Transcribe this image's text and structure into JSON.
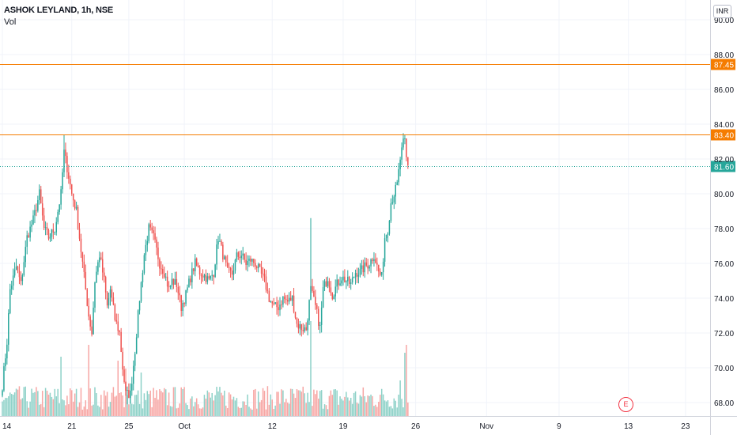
{
  "legend": {
    "title": "ASHOK LEYLAND, 1h, NSE",
    "volume_label": "Vol"
  },
  "currency_label": "INR",
  "earnings_marker": "E",
  "colors": {
    "up": "#26a69a",
    "down": "#ef5350",
    "vol_up": "#8ed1c8",
    "vol_down": "#f7a6a4",
    "resistance": "#f57c00",
    "last_price": "#26a69a",
    "grid": "#f0f3fa",
    "axis_text": "#131722"
  },
  "chart_data": {
    "type": "candlestick",
    "symbol": "ASHOK LEYLAND",
    "interval": "1h",
    "exchange": "NSE",
    "currency": "INR",
    "y_ticks": [
      68,
      70,
      72,
      74,
      76,
      78,
      80,
      82,
      84,
      86,
      88,
      90
    ],
    "ylim": [
      67.75,
      90.7
    ],
    "x_ticks": [
      {
        "label": "14",
        "bar": 0
      },
      {
        "label": "21",
        "bar": 45
      },
      {
        "label": "25",
        "bar": 82
      },
      {
        "label": "Oct",
        "bar": 118
      },
      {
        "label": "12",
        "bar": 175
      },
      {
        "label": "19",
        "bar": 221
      },
      {
        "label": "26",
        "bar": 268
      },
      {
        "label": "Nov",
        "bar": 314
      },
      {
        "label": "9",
        "bar": 361
      },
      {
        "label": "13",
        "bar": 406
      },
      {
        "label": "23",
        "bar": 443
      }
    ],
    "horizontal_lines": [
      {
        "price": 87.45,
        "label": "87.45",
        "style": "solid"
      },
      {
        "price": 83.4,
        "label": "83.40",
        "style": "solid"
      }
    ],
    "last_price": {
      "price": 81.6,
      "label": "81.60",
      "style": "dotted"
    },
    "anchors": [
      [
        0,
        69.0
      ],
      [
        3,
        71.5
      ],
      [
        5,
        74.5
      ],
      [
        9,
        75.8
      ],
      [
        12,
        74.8
      ],
      [
        16,
        77.5
      ],
      [
        20,
        78.5
      ],
      [
        24,
        80.0
      ],
      [
        27,
        78.0
      ],
      [
        30,
        77.5
      ],
      [
        34,
        78.0
      ],
      [
        38,
        80.0
      ],
      [
        40,
        82.4
      ],
      [
        42,
        81.5
      ],
      [
        45,
        80.0
      ],
      [
        48,
        79.0
      ],
      [
        52,
        76.0
      ],
      [
        56,
        73.0
      ],
      [
        58,
        72.0
      ],
      [
        60,
        75.0
      ],
      [
        63,
        76.5
      ],
      [
        66,
        75.0
      ],
      [
        68,
        73.5
      ],
      [
        70,
        74.5
      ],
      [
        73,
        72.8
      ],
      [
        76,
        72.0
      ],
      [
        78,
        70.0
      ],
      [
        80,
        68.5
      ],
      [
        83,
        68.5
      ],
      [
        86,
        71.0
      ],
      [
        89,
        74.0
      ],
      [
        92,
        76.5
      ],
      [
        95,
        78.0
      ],
      [
        98,
        77.5
      ],
      [
        102,
        76.0
      ],
      [
        105,
        75.5
      ],
      [
        108,
        74.5
      ],
      [
        110,
        75.0
      ],
      [
        113,
        74.8
      ],
      [
        116,
        73.5
      ],
      [
        119,
        74.2
      ],
      [
        122,
        75.2
      ],
      [
        125,
        76.0
      ],
      [
        128,
        75.5
      ],
      [
        131,
        75.3
      ],
      [
        134,
        75.0
      ],
      [
        137,
        75.5
      ],
      [
        140,
        77.5
      ],
      [
        143,
        76.5
      ],
      [
        146,
        75.5
      ],
      [
        149,
        75.4
      ],
      [
        152,
        76.4
      ],
      [
        155,
        76.5
      ],
      [
        158,
        76.0
      ],
      [
        161,
        76.2
      ],
      [
        164,
        76.0
      ],
      [
        167,
        75.5
      ],
      [
        170,
        75.0
      ],
      [
        173,
        74.0
      ],
      [
        176,
        73.5
      ],
      [
        179,
        73.5
      ],
      [
        182,
        74.0
      ],
      [
        185,
        73.8
      ],
      [
        188,
        74.0
      ],
      [
        191,
        72.5
      ],
      [
        194,
        72.3
      ],
      [
        197,
        72.2
      ],
      [
        200,
        74.5
      ],
      [
        203,
        73.5
      ],
      [
        206,
        72.3
      ],
      [
        208,
        74.5
      ],
      [
        211,
        75.2
      ],
      [
        214,
        74.2
      ],
      [
        217,
        74.8
      ],
      [
        220,
        75.2
      ],
      [
        223,
        75.0
      ],
      [
        226,
        74.8
      ],
      [
        229,
        75.5
      ],
      [
        232,
        75.5
      ],
      [
        235,
        75.8
      ],
      [
        238,
        76.0
      ],
      [
        241,
        76.5
      ],
      [
        244,
        75.5
      ],
      [
        246,
        75.2
      ],
      [
        248,
        77.5
      ],
      [
        250,
        78.0
      ],
      [
        252,
        79.5
      ],
      [
        254,
        80.0
      ],
      [
        256,
        80.5
      ],
      [
        258,
        82.0
      ],
      [
        260,
        82.9
      ],
      [
        261,
        83.0
      ],
      [
        262,
        82.0
      ],
      [
        263,
        81.6
      ]
    ]
  }
}
